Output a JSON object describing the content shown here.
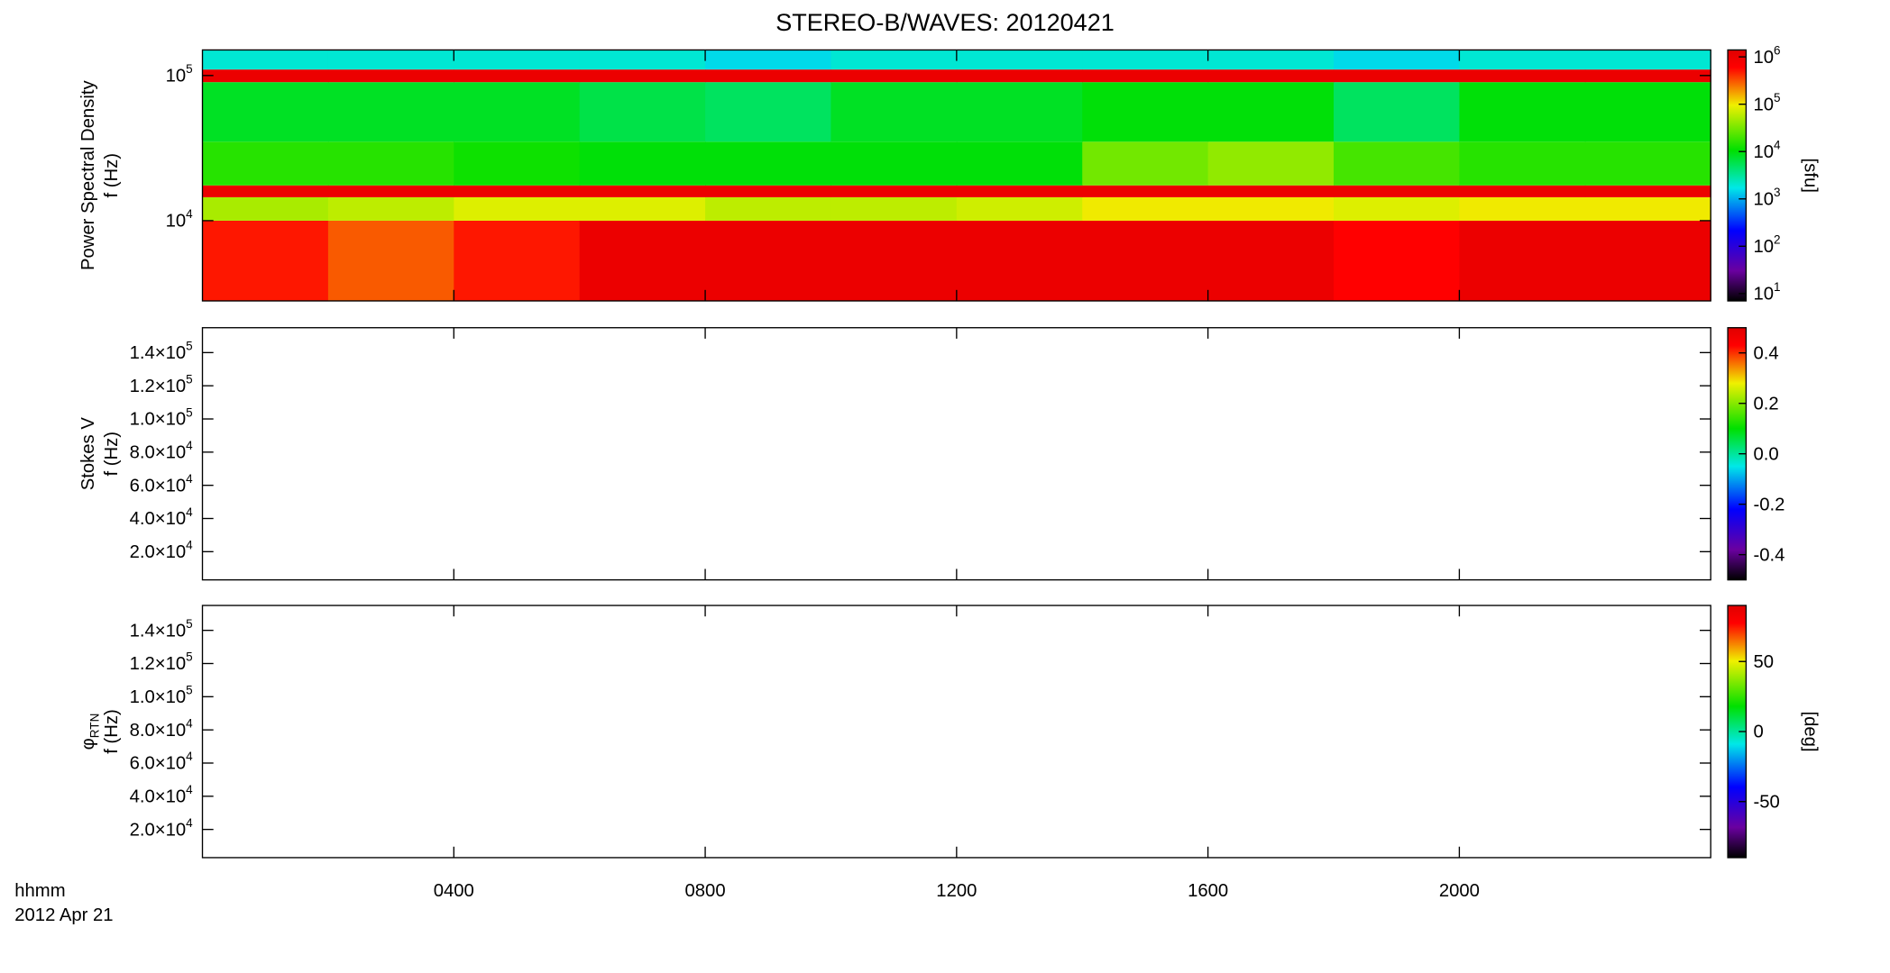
{
  "chart_data": [
    {
      "type": "heatmap",
      "title": "STEREO-B/WAVES: 20120421",
      "ylabel": [
        "Power Spectral Density",
        "f (Hz)"
      ],
      "x_bins": [
        0,
        2,
        4,
        6,
        8,
        10,
        12,
        14,
        16,
        18,
        20,
        22,
        24
      ],
      "y_bins": [
        2800,
        10000,
        14500,
        17500,
        35000,
        90000,
        110000,
        150000
      ],
      "z": [
        [
          500000,
          300000,
          500000,
          1000000,
          1000000,
          1000000,
          1000000,
          1000000,
          1000000,
          600000,
          1000000,
          1000000
        ],
        [
          50000,
          60000,
          80000,
          80000,
          60000,
          60000,
          70000,
          100000,
          100000,
          80000,
          100000,
          100000
        ],
        [
          1000000,
          1000000,
          1000000,
          1000000,
          1000000,
          1000000,
          1000000,
          1000000,
          1000000,
          1000000,
          1000000,
          1000000
        ],
        [
          15000,
          15000,
          12000,
          10000,
          10000,
          10000,
          10000,
          30000,
          40000,
          20000,
          15000,
          15000
        ],
        [
          8000,
          8000,
          8000,
          6000,
          5000,
          8000,
          8000,
          10000,
          10000,
          5000,
          10000,
          10000
        ],
        [
          1000000,
          1000000,
          1000000,
          1000000,
          1000000,
          1000000,
          1000000,
          1000000,
          1000000,
          1000000,
          1000000,
          1000000
        ],
        [
          2000,
          2000,
          2000,
          2000,
          1500,
          2000,
          2000,
          2000,
          2000,
          1500,
          2000,
          2000
        ]
      ],
      "ylim": [
        2800,
        150000
      ],
      "ylog": true,
      "yticks": [
        {
          "value": 10000,
          "label": "10^4"
        },
        {
          "value": 100000,
          "label": "10^5"
        }
      ],
      "colormap": "rainbow",
      "clim": [
        7,
        1400000
      ],
      "clog": true,
      "cticks": [
        {
          "value": 10,
          "label": "10^1"
        },
        {
          "value": 100,
          "label": "10^2"
        },
        {
          "value": 1000,
          "label": "10^3"
        },
        {
          "value": 10000,
          "label": "10^4"
        },
        {
          "value": 100000,
          "label": "10^5"
        },
        {
          "value": 1000000,
          "label": "10^6"
        }
      ],
      "clabel": "[sfu]"
    },
    {
      "type": "heatmap",
      "ylabel": [
        "Stokes V",
        "f (Hz)"
      ],
      "ylim": [
        3000,
        155000
      ],
      "ylog": false,
      "yticks": [
        {
          "value": 20000,
          "label": "2.0×10^4"
        },
        {
          "value": 40000,
          "label": "4.0×10^4"
        },
        {
          "value": 60000,
          "label": "6.0×10^4"
        },
        {
          "value": 80000,
          "label": "8.0×10^4"
        },
        {
          "value": 100000,
          "label": "1.0×10^5"
        },
        {
          "value": 120000,
          "label": "1.2×10^5"
        },
        {
          "value": 140000,
          "label": "1.4×10^5"
        }
      ],
      "colormap": "rainbow",
      "clim": [
        -0.5,
        0.5
      ],
      "clog": false,
      "cticks": [
        -0.4,
        -0.2,
        {
          "value": 0,
          "label": "0.0"
        },
        0.2,
        0.4
      ]
    },
    {
      "type": "heatmap",
      "ylabel": [
        "φ_RTN",
        "f (Hz)"
      ],
      "ylim": [
        3000,
        155000
      ],
      "ylog": false,
      "yticks": [
        {
          "value": 20000,
          "label": "2.0×10^4"
        },
        {
          "value": 40000,
          "label": "4.0×10^4"
        },
        {
          "value": 60000,
          "label": "6.0×10^4"
        },
        {
          "value": 80000,
          "label": "8.0×10^4"
        },
        {
          "value": 100000,
          "label": "1.0×10^5"
        },
        {
          "value": 120000,
          "label": "1.2×10^5"
        },
        {
          "value": 140000,
          "label": "1.4×10^5"
        }
      ],
      "colormap": "rainbow",
      "clim": [
        -90,
        90
      ],
      "clog": false,
      "cticks": [
        -50,
        0,
        50
      ],
      "clabel": "[deg]",
      "xlim": [
        0,
        24
      ],
      "xticks": [
        {
          "value": 4,
          "label": "0400"
        },
        {
          "value": 8,
          "label": "0800"
        },
        {
          "value": 12,
          "label": "1200"
        },
        {
          "value": 16,
          "label": "1600"
        },
        {
          "value": 20,
          "label": "2000"
        }
      ],
      "xlabel": [
        "hhmm",
        "2012 Apr 21"
      ]
    }
  ]
}
